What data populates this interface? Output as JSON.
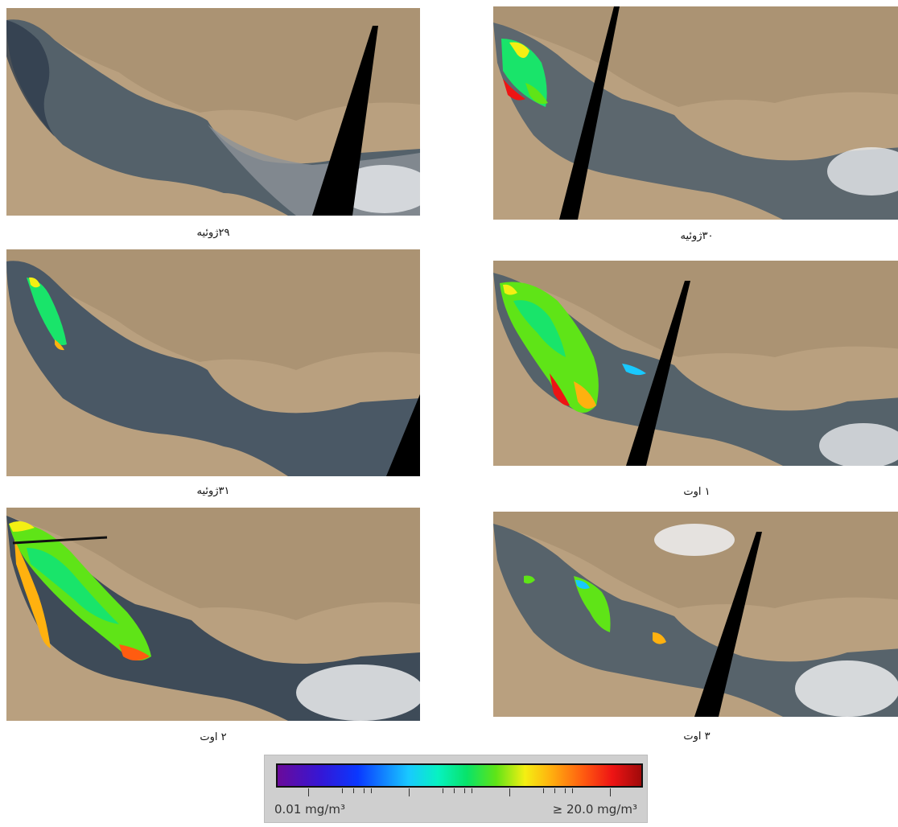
{
  "panels": [
    {
      "id": "p29",
      "caption": "۲۹ژوئیه",
      "bloom": "none"
    },
    {
      "id": "p30",
      "caption": "۳۰ژوئیه",
      "bloom": "small-north"
    },
    {
      "id": "p31",
      "caption": "۳۱ژوئیه",
      "bloom": "small-north"
    },
    {
      "id": "a1",
      "caption": "۱ اوت",
      "bloom": "large"
    },
    {
      "id": "a2",
      "caption": "۲ اوت",
      "bloom": "very-large"
    },
    {
      "id": "a3",
      "caption": "۳ اوت",
      "bloom": "patches"
    }
  ],
  "legend": {
    "min_label": "0.01 mg/m³",
    "max_label": "≥ 20.0 mg/m³",
    "colors": [
      "#6a0a9a",
      "#3417d6",
      "#0a38ff",
      "#19c9ff",
      "#07f2c2",
      "#08e36a",
      "#5fe417",
      "#f4ef13",
      "#ffb10f",
      "#ff5c10",
      "#ee1414",
      "#a00a0a"
    ]
  }
}
